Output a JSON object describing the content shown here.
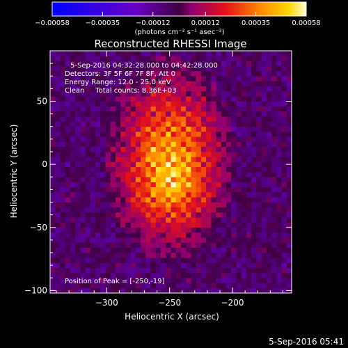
{
  "chart_data": {
    "type": "heatmap",
    "title": "Reconstructed RHESSI Image",
    "xlabel": "Heliocentric X (arcsec)",
    "ylabel": "Heliocentric Y (arcsec)",
    "xlim": [
      -345,
      -153
    ],
    "ylim": [
      -102,
      90
    ],
    "x_ticks": [
      -300,
      -250,
      -200
    ],
    "x_tick_labels": [
      "−300",
      "−250",
      "−200"
    ],
    "y_ticks": [
      -100,
      -50,
      0,
      50
    ],
    "y_tick_labels": [
      "−100",
      "−50",
      "0",
      "50"
    ],
    "colorbar": {
      "ticks": [
        -0.00058,
        -0.00035,
        -0.00012,
        0.00012,
        0.00035,
        0.00058
      ],
      "tick_labels": [
        "−0.00058",
        "−0.00035",
        "−0.00012",
        "0.00012",
        "0.00035",
        "0.00058"
      ],
      "range": [
        -0.00058,
        0.00058
      ],
      "unit_label": "(photons cm⁻² s⁻¹ asec⁻²)"
    },
    "annotations": [
      "5-Sep-2016 04:32:28.000 to 04:42:28.000",
      "Detectors: 3F 5F 6F 7F 8F, Att 0",
      "Energy Range: 12.0 - 25.0 keV",
      "Clean     Total counts: 8.36E+03"
    ],
    "peak_label": "Position of Peak = [-250,-19]",
    "peak_position": [
      -250,
      -19
    ],
    "source_center": [
      -250,
      5
    ],
    "grid": false
  },
  "footer": {
    "timestamp": "5-Sep-2016 05:41"
  },
  "colors": {
    "background": "#000000",
    "text": "#ffffff"
  }
}
